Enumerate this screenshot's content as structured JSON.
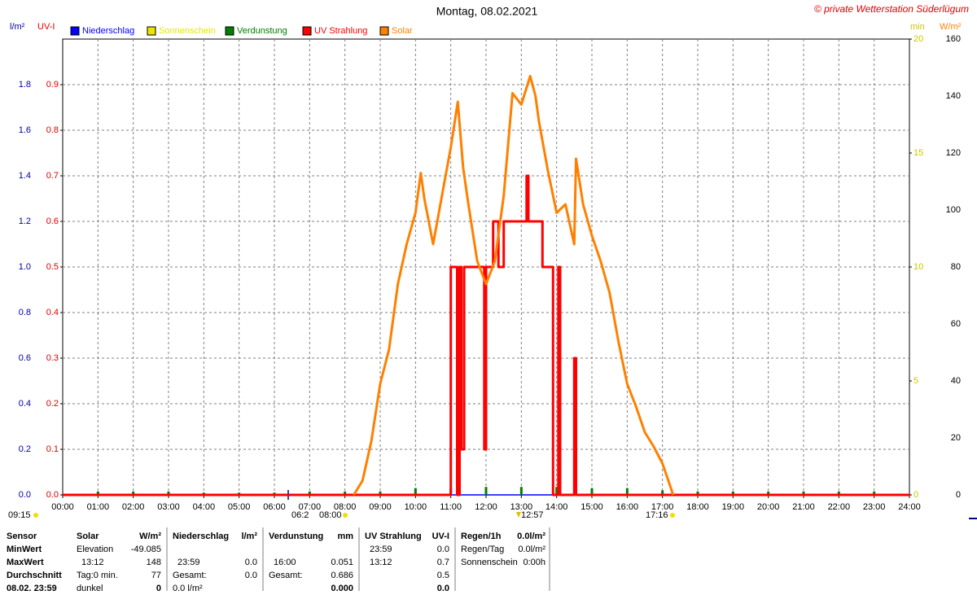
{
  "chart_data": {
    "type": "line",
    "title": "Montag, 08.02.2021",
    "credit": "© private Wetterstation Süderlügum",
    "axis_labels": {
      "y": "l/m²",
      "uv": "UV-I",
      "y2": "min",
      "y3": "W/m²"
    },
    "xlim": [
      0,
      24
    ],
    "xticks": [
      {
        "value": 0,
        "label": "00:00"
      },
      {
        "value": 1,
        "label": "01:00"
      },
      {
        "value": 2,
        "label": "02:00"
      },
      {
        "value": 3,
        "label": "03:00"
      },
      {
        "value": 4,
        "label": "04:00"
      },
      {
        "value": 5,
        "label": "05:00"
      },
      {
        "value": 6,
        "label": "06:00"
      },
      {
        "value": 7,
        "label": "07:00"
      },
      {
        "value": 8,
        "label": "08:00"
      },
      {
        "value": 9,
        "label": "09:00"
      },
      {
        "value": 10,
        "label": "10:00"
      },
      {
        "value": 11,
        "label": "11:00"
      },
      {
        "value": 12,
        "label": "12:00"
      },
      {
        "value": 13,
        "label": "13:00"
      },
      {
        "value": 14,
        "label": "14:00"
      },
      {
        "value": 15,
        "label": "15:00"
      },
      {
        "value": 16,
        "label": "16:00"
      },
      {
        "value": 17,
        "label": "17:00"
      },
      {
        "value": 18,
        "label": "18:00"
      },
      {
        "value": 19,
        "label": "19:00"
      },
      {
        "value": 20,
        "label": "20:00"
      },
      {
        "value": 21,
        "label": "21:00"
      },
      {
        "value": 22,
        "label": "22:00"
      },
      {
        "value": 23,
        "label": "23:00"
      },
      {
        "value": 24,
        "label": "24:00"
      }
    ],
    "ylim": [
      0,
      2
    ],
    "yticks": [
      {
        "value": 0,
        "label": "0.0"
      },
      0.2,
      0.4,
      0.6,
      0.8,
      {
        "value": 1,
        "label": "1.0"
      },
      1.2,
      1.4,
      1.6,
      1.8
    ],
    "uvlim": [
      0,
      1
    ],
    "uvticks": [
      {
        "value": 0,
        "label": "0.0"
      },
      0.1,
      0.2,
      0.3,
      0.4,
      0.5,
      0.6,
      0.7,
      0.8,
      0.9
    ],
    "y2lim": [
      0,
      20
    ],
    "y2ticks": [
      0,
      5,
      10,
      15,
      20
    ],
    "y3lim": [
      0,
      160
    ],
    "y3ticks": [
      0,
      20,
      40,
      60,
      80,
      100,
      120,
      140,
      160
    ],
    "grid": true,
    "series": [
      {
        "name": "Niederschlag",
        "color": "#0000ff",
        "axis": "y",
        "x": [
          0,
          24
        ],
        "values": [
          0,
          0
        ]
      },
      {
        "name": "Sonnenschein",
        "color": "#e6e600",
        "axis": "y2",
        "x": [],
        "values": []
      },
      {
        "name": "Verdunstung",
        "color": "#008000",
        "axis": "y",
        "style": "bar",
        "x": [
          1,
          2,
          3,
          4,
          5,
          6,
          7,
          8,
          9,
          10,
          11,
          12,
          13,
          14,
          15,
          16,
          17,
          18,
          19,
          20,
          21,
          22,
          23
        ],
        "values": [
          0.015,
          0.015,
          0.015,
          0.01,
          0.01,
          0.01,
          0.015,
          0.015,
          0.015,
          0.03,
          0.03,
          0.035,
          0.035,
          0.035,
          0.03,
          0.03,
          0.02,
          0.015,
          0.015,
          0.015,
          0.015,
          0.015,
          0.015
        ]
      },
      {
        "name": "UV Strahlung",
        "color": "#ff0000",
        "axis": "uv",
        "x": [
          0,
          11.0,
          11.0,
          11.18,
          11.18,
          11.25,
          11.25,
          11.3,
          11.3,
          11.38,
          11.38,
          11.95,
          11.95,
          12.0,
          12.0,
          12.2,
          12.2,
          12.35,
          12.35,
          12.5,
          12.5,
          13.15,
          13.15,
          13.2,
          13.2,
          13.6,
          13.6,
          13.9,
          13.9,
          14.05,
          14.05,
          14.1,
          14.1,
          14.5,
          14.5,
          14.55,
          14.55,
          24
        ],
        "values": [
          0,
          0,
          0.5,
          0.5,
          0,
          0,
          0.5,
          0.5,
          0.1,
          0.1,
          0.5,
          0.5,
          0.1,
          0.1,
          0.5,
          0.5,
          0.6,
          0.6,
          0.5,
          0.5,
          0.6,
          0.6,
          0.7,
          0.7,
          0.6,
          0.6,
          0.5,
          0.5,
          0,
          0,
          0.5,
          0.5,
          0,
          0,
          0.3,
          0.3,
          0,
          0
        ]
      },
      {
        "name": "Solar",
        "color": "#ff8000",
        "axis": "y3",
        "x": [
          8.25,
          8.5,
          8.75,
          9.0,
          9.25,
          9.5,
          9.75,
          10.0,
          10.15,
          10.25,
          10.5,
          10.75,
          11.0,
          11.1,
          11.2,
          11.35,
          11.5,
          11.75,
          12.0,
          12.25,
          12.5,
          12.75,
          13.0,
          13.25,
          13.4,
          13.5,
          13.75,
          14.0,
          14.25,
          14.5,
          14.55,
          14.75,
          15.0,
          15.25,
          15.5,
          15.75,
          16.0,
          16.25,
          16.5,
          16.75,
          17.0,
          17.25,
          17.3
        ],
        "values": [
          0,
          5,
          19,
          39,
          51,
          74,
          88,
          99,
          113,
          104,
          88,
          105,
          122,
          130,
          138,
          115,
          102,
          82,
          74,
          82,
          105,
          141,
          137,
          147,
          140,
          131,
          114,
          99,
          102,
          88,
          118,
          102,
          91,
          82,
          71,
          54,
          39,
          31,
          22,
          17,
          11,
          2,
          0
        ]
      }
    ],
    "markers": [
      "09:15",
      "06:2",
      "08:00",
      "12:57",
      "17:16"
    ]
  },
  "table": {
    "rows": [
      [
        "Sensor",
        "Solar",
        "W/m²",
        "Niederschlag",
        "l/m²",
        "Verdunstung",
        "mm",
        "UV Strahlung",
        "UV-I",
        "Regen/1h",
        "0.0l/m²"
      ],
      [
        "MinWert",
        "Elevation",
        "-49.085",
        null,
        null,
        null,
        null,
        "23:59",
        "0.0",
        "Regen/Tag",
        "0.0l/m²"
      ],
      [
        "MaxWert",
        "13:12",
        "148",
        "23:59",
        "0.0",
        "16:00",
        "0.051",
        "13:12",
        "0.7",
        "Sonnenschein",
        "0:00h"
      ],
      [
        "Durchschnitt",
        "Tag:0 min.",
        "77",
        "Gesamt:",
        "0.0",
        "Gesamt:",
        "0.686",
        null,
        "0.5",
        null,
        null
      ],
      [
        "08.02. 23:59",
        "dunkel",
        "0",
        "0.0 l/m²",
        null,
        null,
        "0.000",
        null,
        "0.0",
        null,
        null
      ]
    ]
  }
}
